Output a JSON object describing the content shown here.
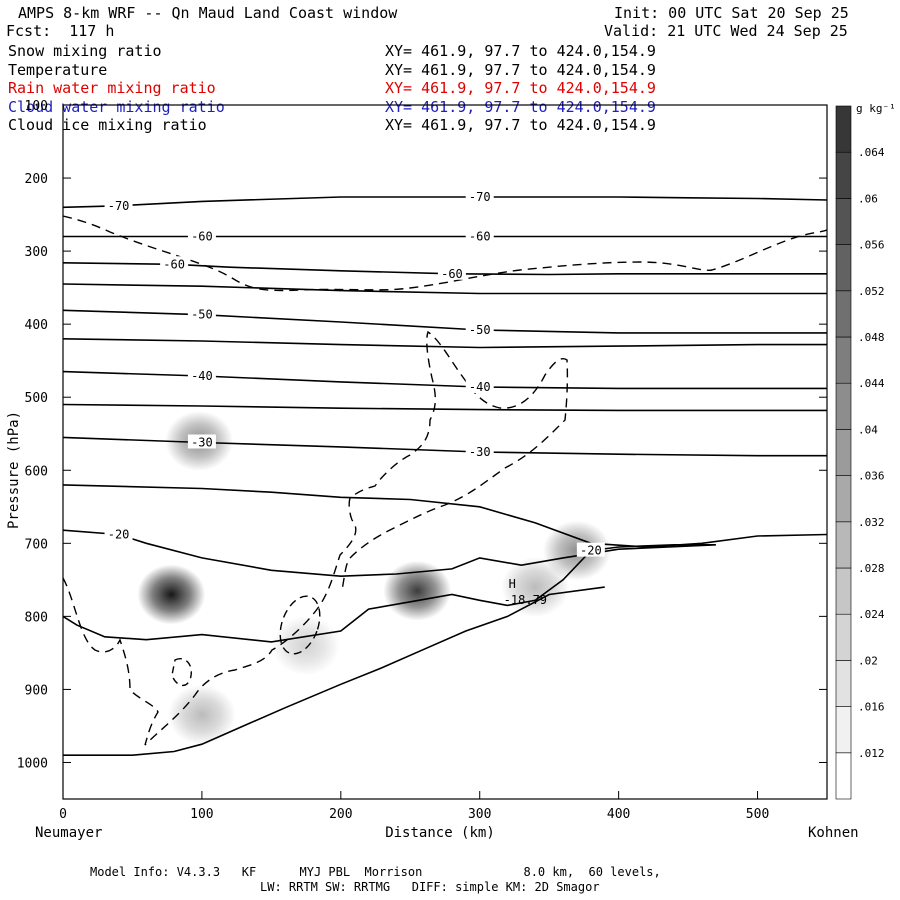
{
  "header": {
    "title_left": "AMPS 8-km WRF -- Qn Maud Land Coast window",
    "init": "Init: 00 UTC Sat 20 Sep 25",
    "fcst": "Fcst:  117 h",
    "valid": "Valid: 21 UTC Wed 24 Sep 25"
  },
  "fields": [
    {
      "name": "Snow mixing ratio",
      "xy": "XY= 461.9, 97.7 to 424.0,154.9",
      "color": "#000000"
    },
    {
      "name": "Temperature",
      "xy": "XY= 461.9, 97.7 to 424.0,154.9",
      "color": "#000000"
    },
    {
      "name": "Rain water mixing ratio",
      "xy": "XY= 461.9, 97.7 to 424.0,154.9",
      "color": "#e00000"
    },
    {
      "name": "Cloud water mixing ratio",
      "xy": "XY= 461.9, 97.7 to 424.0,154.9",
      "color": "#2020c0"
    },
    {
      "name": "Cloud ice mixing ratio",
      "xy": "XY= 461.9, 97.7 to 424.0,154.9",
      "color": "#000000"
    }
  ],
  "chart_data": {
    "type": "heatmap",
    "xlabel": "Distance (km)",
    "ylabel": "Pressure (hPa)",
    "xlim": [
      0,
      550
    ],
    "ylim": [
      1050,
      100
    ],
    "x_ticks": [
      0,
      100,
      200,
      300,
      400,
      500
    ],
    "y_ticks": [
      100,
      200,
      300,
      400,
      500,
      600,
      700,
      800,
      900,
      1000
    ],
    "left_label": "Neumayer",
    "right_label": "Kohnen",
    "colorbar": {
      "unit": "g kg⁻¹",
      "ticks": [
        ".012",
        ".016",
        ".02",
        ".024",
        ".028",
        ".032",
        ".036",
        ".04",
        ".044",
        ".048",
        ".052",
        ".056",
        ".06",
        ".064"
      ]
    },
    "isotherms": [
      {
        "value": -70,
        "label": "-70",
        "points": [
          [
            0,
            240
          ],
          [
            40,
            238
          ],
          [
            100,
            232
          ],
          [
            200,
            226
          ],
          [
            300,
            226
          ],
          [
            400,
            226
          ],
          [
            450,
            227
          ],
          [
            500,
            228
          ],
          [
            550,
            230
          ]
        ]
      },
      {
        "value": -60,
        "label": "-60",
        "points": [
          [
            0,
            280
          ],
          [
            100,
            280
          ],
          [
            200,
            280
          ],
          [
            300,
            280
          ],
          [
            400,
            280
          ],
          [
            500,
            280
          ],
          [
            550,
            280
          ]
        ]
      },
      {
        "value": -60,
        "label": "-60",
        "points": [
          [
            0,
            316
          ],
          [
            80,
            318
          ],
          [
            120,
            322
          ],
          [
            200,
            327
          ],
          [
            280,
            331
          ],
          [
            350,
            332
          ],
          [
            400,
            331
          ],
          [
            500,
            331
          ],
          [
            550,
            331
          ]
        ]
      },
      {
        "value": -55,
        "label": "",
        "points": [
          [
            0,
            345
          ],
          [
            100,
            348
          ],
          [
            200,
            354
          ],
          [
            300,
            358
          ],
          [
            400,
            358
          ],
          [
            500,
            358
          ],
          [
            550,
            358
          ]
        ]
      },
      {
        "value": -50,
        "label": "-50",
        "points": [
          [
            0,
            381
          ],
          [
            100,
            387
          ],
          [
            200,
            397
          ],
          [
            300,
            408
          ],
          [
            400,
            412
          ],
          [
            500,
            412
          ],
          [
            550,
            412
          ]
        ]
      },
      {
        "value": -45,
        "label": "",
        "points": [
          [
            0,
            420
          ],
          [
            100,
            423
          ],
          [
            200,
            428
          ],
          [
            300,
            432
          ],
          [
            400,
            430
          ],
          [
            500,
            428
          ],
          [
            550,
            428
          ]
        ]
      },
      {
        "value": -40,
        "label": "-40",
        "points": [
          [
            0,
            465
          ],
          [
            100,
            471
          ],
          [
            200,
            479
          ],
          [
            300,
            486
          ],
          [
            400,
            488
          ],
          [
            500,
            488
          ],
          [
            550,
            488
          ]
        ]
      },
      {
        "value": -35,
        "label": "",
        "points": [
          [
            0,
            510
          ],
          [
            100,
            512
          ],
          [
            200,
            515
          ],
          [
            300,
            517
          ],
          [
            400,
            518
          ],
          [
            500,
            518
          ],
          [
            550,
            518
          ]
        ]
      },
      {
        "value": -30,
        "label": "-30",
        "points": [
          [
            0,
            555
          ],
          [
            100,
            562
          ],
          [
            200,
            568
          ],
          [
            300,
            575
          ],
          [
            400,
            578
          ],
          [
            500,
            580
          ],
          [
            550,
            580
          ]
        ]
      },
      {
        "value": -25,
        "label": "",
        "points": [
          [
            0,
            620
          ],
          [
            100,
            625
          ],
          [
            150,
            630
          ],
          [
            200,
            637
          ],
          [
            250,
            640
          ],
          [
            300,
            650
          ],
          [
            340,
            672
          ],
          [
            380,
            700
          ],
          [
            420,
            705
          ],
          [
            460,
            700
          ],
          [
            500,
            690
          ],
          [
            550,
            688
          ]
        ]
      },
      {
        "value": -20,
        "label": "-20",
        "points": [
          [
            0,
            682
          ],
          [
            40,
            688
          ],
          [
            60,
            700
          ],
          [
            100,
            720
          ],
          [
            150,
            737
          ],
          [
            200,
            745
          ],
          [
            240,
            742
          ],
          [
            280,
            735
          ],
          [
            300,
            720
          ],
          [
            330,
            730
          ],
          [
            360,
            720
          ],
          [
            400,
            708
          ],
          [
            470,
            702
          ],
          [
            440,
            702
          ],
          [
            400,
            705
          ],
          [
            380,
            710
          ],
          [
            360,
            750
          ],
          [
            340,
            778
          ],
          [
            320,
            785
          ],
          [
            300,
            778
          ],
          [
            280,
            770
          ],
          [
            250,
            780
          ],
          [
            220,
            790
          ],
          [
            200,
            820
          ],
          [
            150,
            835
          ],
          [
            100,
            825
          ],
          [
            60,
            832
          ],
          [
            30,
            828
          ],
          [
            10,
            812
          ],
          [
            0,
            800
          ]
        ]
      },
      {
        "value": -18.79,
        "label": "",
        "points": [
          [
            0,
            990
          ],
          [
            50,
            990
          ],
          [
            80,
            985
          ],
          [
            100,
            975
          ],
          [
            130,
            950
          ],
          [
            160,
            925
          ],
          [
            200,
            893
          ],
          [
            230,
            870
          ],
          [
            260,
            845
          ],
          [
            290,
            820
          ],
          [
            320,
            800
          ],
          [
            350,
            770
          ],
          [
            390,
            760
          ]
        ]
      }
    ],
    "high_marker": {
      "label": "H",
      "value": "-18.79",
      "x": 323,
      "p": 780
    },
    "clouds": [
      {
        "x": 98,
        "p": 560,
        "max": 0.03
      },
      {
        "x": 78,
        "p": 770,
        "max": 0.062
      },
      {
        "x": 255,
        "p": 765,
        "max": 0.052
      },
      {
        "x": 370,
        "p": 710,
        "max": 0.03
      },
      {
        "x": 340,
        "p": 760,
        "max": 0.018
      },
      {
        "x": 100,
        "p": 935,
        "max": 0.018
      },
      {
        "x": 175,
        "p": 840,
        "max": 0.012
      }
    ]
  },
  "footer": {
    "line1": "Model Info: V4.3.3   KF      MYJ PBL  Morrison              8.0 km,  60 levels,",
    "line2": "LW: RRTM SW: RRTMG   DIFF: simple KM: 2D Smagor"
  }
}
